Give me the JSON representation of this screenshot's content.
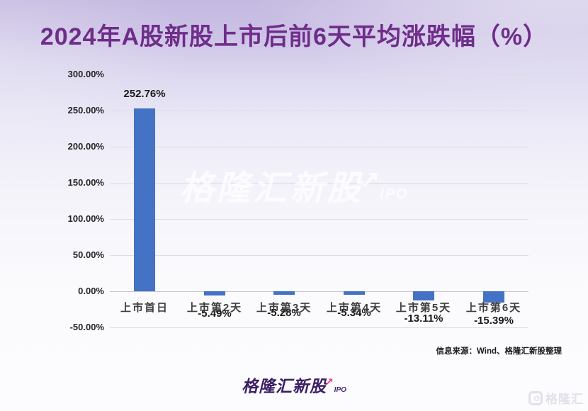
{
  "title": "2024年A股新股上市后前6天平均涨跌幅（%）",
  "watermark": {
    "text": "格隆汇新股",
    "arrow": "↗",
    "suffix": "IPO"
  },
  "source_note": "信息来源：Wind、格隆汇新股整理",
  "footer_logo": {
    "text": "格隆汇新股",
    "arrow": "↗",
    "suffix": "IPO"
  },
  "corner_logo": {
    "mark": "G",
    "text": "格隆汇"
  },
  "colors": {
    "bar": "#4472C4",
    "title": "#6F2D8A",
    "grid": "#DCDCE4",
    "zero_line": "#C6C6D0",
    "label_text": "#1A1A1A",
    "logo_purple": "#3B1F63",
    "logo_pink": "#E8417E"
  },
  "chart_data": {
    "type": "bar",
    "title": "2024年A股新股上市后前6天平均涨跌幅（%）",
    "categories": [
      "上市首日",
      "上市第2天",
      "上市第3天",
      "上市第4天",
      "上市第5天",
      "上市第6天"
    ],
    "values": [
      252.76,
      -5.49,
      -5.28,
      -5.34,
      -13.11,
      -15.39
    ],
    "value_labels": [
      "252.76%",
      "-5.49%",
      "-5.28%",
      "-5.34%",
      "-13.11%",
      "-15.39%"
    ],
    "xlabel": "",
    "ylabel": "",
    "ylim": [
      -50,
      300
    ],
    "ytick_step": 50,
    "yticks": [
      "300.00%",
      "250.00%",
      "200.00%",
      "150.00%",
      "100.00%",
      "50.00%",
      "0.00%",
      "-50.00%"
    ],
    "grid": true,
    "legend": false,
    "bar_color": "#4472C4"
  }
}
